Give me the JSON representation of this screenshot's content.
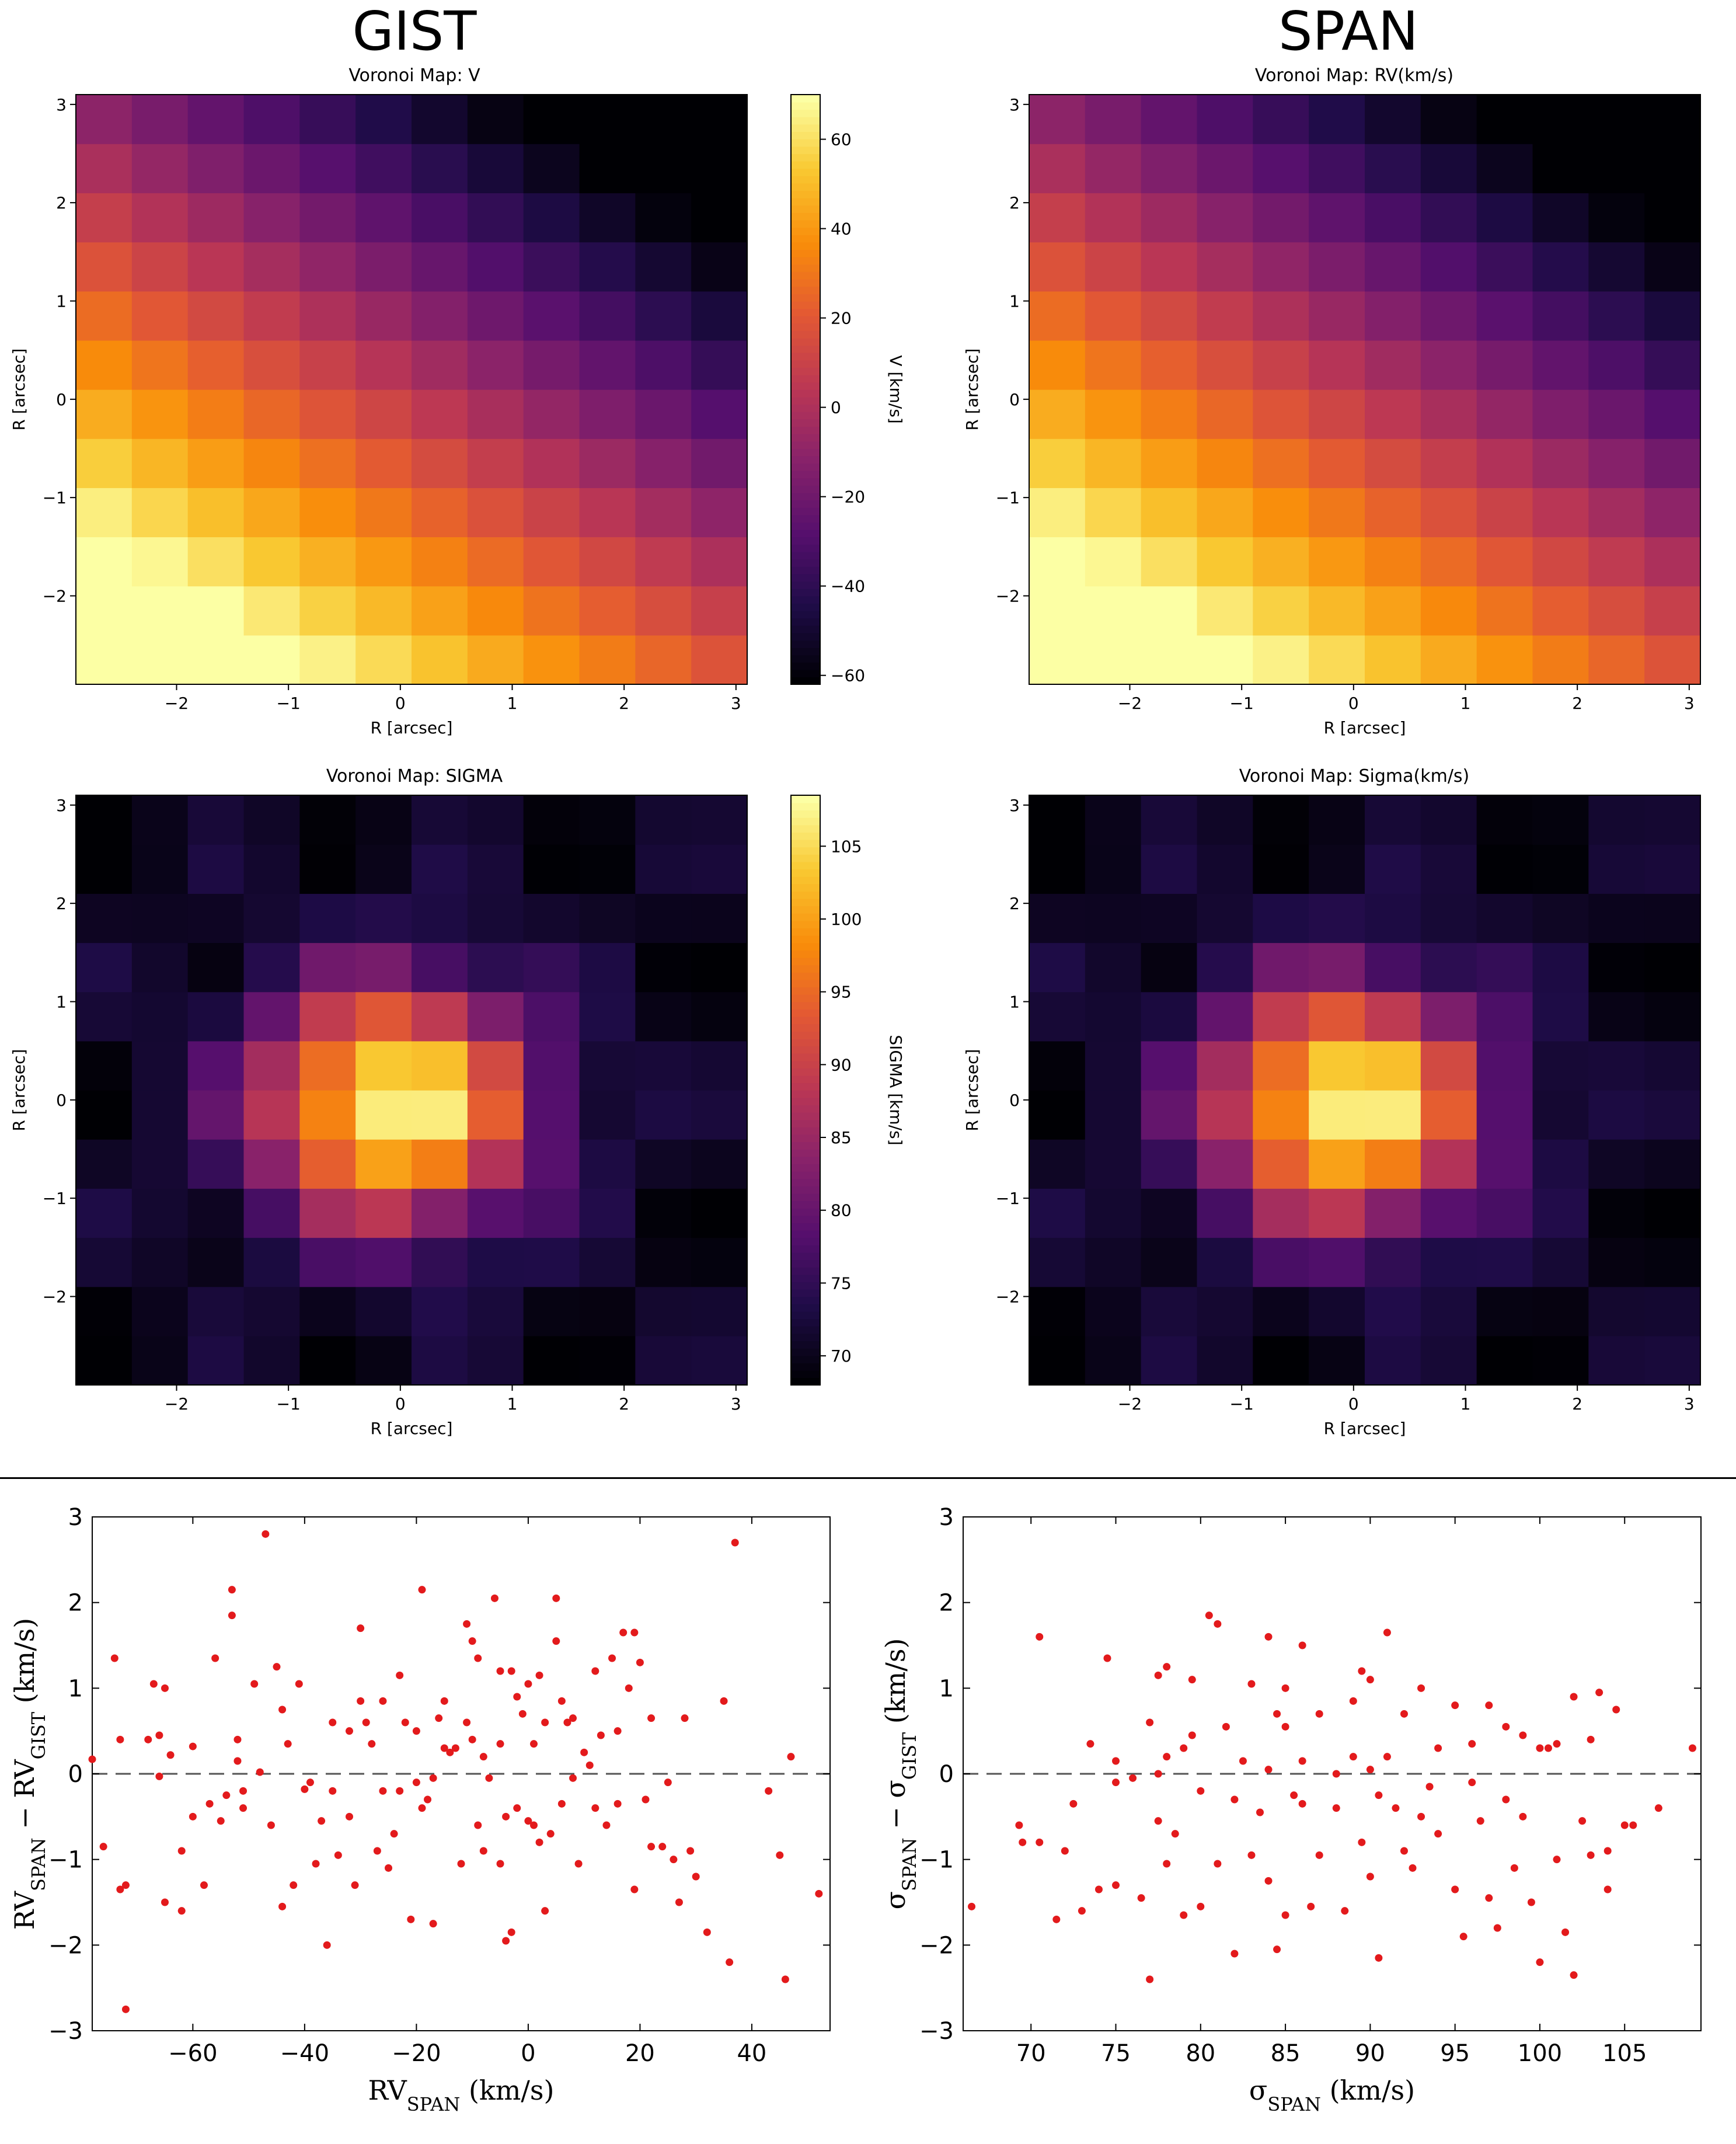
{
  "headers": {
    "left": "GIST",
    "right": "SPAN"
  },
  "chart_data": [
    {
      "type": "heatmap",
      "title": "Voronoi Map: V",
      "xlabel": "R [arcsec]",
      "ylabel": "R [arcsec]",
      "xlim": [
        -2.9,
        3.1
      ],
      "ylim": [
        -2.9,
        3.1
      ],
      "xticks": [
        -2,
        -1,
        0,
        1,
        2,
        3
      ],
      "yticks": [
        -2,
        -1,
        0,
        1,
        2,
        3
      ],
      "colorbar": {
        "label": "V [km/s]",
        "range": [
          -62,
          70
        ],
        "ticks": [
          -60,
          -40,
          -20,
          0,
          20,
          40,
          60
        ],
        "colormap": "inferno"
      },
      "field": "velocity",
      "value_range": [
        -58,
        68
      ]
    },
    {
      "type": "heatmap",
      "title": "Voronoi Map: RV(km/s)",
      "xlabel": "R [arcsec]",
      "ylabel": "R [arcsec]",
      "xlim": [
        -2.9,
        3.1
      ],
      "ylim": [
        -2.9,
        3.1
      ],
      "xticks": [
        -2,
        -1,
        0,
        1,
        2,
        3
      ],
      "yticks": [
        -2,
        -1,
        0,
        1,
        2,
        3
      ],
      "colormap": "inferno",
      "field": "velocity",
      "value_range": [
        -58,
        68
      ]
    },
    {
      "type": "heatmap",
      "title": "Voronoi Map: SIGMA",
      "xlabel": "R [arcsec]",
      "ylabel": "R [arcsec]",
      "xlim": [
        -2.9,
        3.1
      ],
      "ylim": [
        -2.9,
        3.1
      ],
      "xticks": [
        -2,
        -1,
        0,
        1,
        2,
        3
      ],
      "yticks": [
        -2,
        -1,
        0,
        1,
        2,
        3
      ],
      "colorbar": {
        "label": "SIGMA [km/s]",
        "range": [
          68,
          108.5
        ],
        "ticks": [
          70,
          75,
          80,
          85,
          90,
          95,
          100,
          105
        ],
        "colormap": "inferno"
      },
      "field": "sigma",
      "value_range": [
        68,
        108
      ]
    },
    {
      "type": "heatmap",
      "title": "Voronoi Map: Sigma(km/s)",
      "xlabel": "R [arcsec]",
      "ylabel": "R [arcsec]",
      "xlim": [
        -2.9,
        3.1
      ],
      "ylim": [
        -2.9,
        3.1
      ],
      "xticks": [
        -2,
        -1,
        0,
        1,
        2,
        3
      ],
      "yticks": [
        -2,
        -1,
        0,
        1,
        2,
        3
      ],
      "colormap": "inferno",
      "field": "sigma",
      "value_range": [
        68,
        108
      ]
    },
    {
      "type": "scatter",
      "xlabel": "RV_SPAN (km/s)",
      "ylabel": "RV_SPAN − RV_GIST (km/s)",
      "xlim": [
        -78,
        54
      ],
      "ylim": [
        -3,
        3
      ],
      "xticks": [
        -60,
        -40,
        -20,
        0,
        20,
        40
      ],
      "yticks": [
        -3,
        -2,
        -1,
        0,
        1,
        2,
        3
      ],
      "reference_line": 0,
      "color": "#e31a1c",
      "points": [
        [
          -78,
          0.17
        ],
        [
          -76,
          -0.85
        ],
        [
          -74,
          1.35
        ],
        [
          -73,
          0.4
        ],
        [
          -73,
          -1.35
        ],
        [
          -72,
          -2.75
        ],
        [
          -72,
          -1.3
        ],
        [
          -68,
          0.4
        ],
        [
          -67,
          1.05
        ],
        [
          -66,
          -0.03
        ],
        [
          -66,
          0.45
        ],
        [
          -65,
          1.0
        ],
        [
          -65,
          -1.5
        ],
        [
          -64,
          0.22
        ],
        [
          -62,
          -1.6
        ],
        [
          -62,
          -0.9
        ],
        [
          -60,
          0.32
        ],
        [
          -60,
          -0.5
        ],
        [
          -58,
          -1.3
        ],
        [
          -57,
          -0.35
        ],
        [
          -56,
          1.35
        ],
        [
          -55,
          -0.55
        ],
        [
          -54,
          -0.25
        ],
        [
          -53,
          2.15
        ],
        [
          -53,
          1.85
        ],
        [
          -52,
          0.4
        ],
        [
          -52,
          0.15
        ],
        [
          -51,
          -0.4
        ],
        [
          -51,
          -0.2
        ],
        [
          -49,
          1.05
        ],
        [
          -48,
          0.02
        ],
        [
          -47,
          2.8
        ],
        [
          -46,
          -0.6
        ],
        [
          -45,
          1.25
        ],
        [
          -44,
          -1.55
        ],
        [
          -44,
          0.75
        ],
        [
          -43,
          0.35
        ],
        [
          -42,
          -1.3
        ],
        [
          -41,
          1.05
        ],
        [
          -40,
          -0.18
        ],
        [
          -39,
          -0.1
        ],
        [
          -38,
          -1.05
        ],
        [
          -37,
          -0.55
        ],
        [
          -36,
          -2.0
        ],
        [
          -35,
          0.6
        ],
        [
          -35,
          -0.2
        ],
        [
          -34,
          -0.95
        ],
        [
          -32,
          -0.5
        ],
        [
          -32,
          0.5
        ],
        [
          -31,
          -1.3
        ],
        [
          -30,
          1.7
        ],
        [
          -30,
          0.85
        ],
        [
          -29,
          0.6
        ],
        [
          -28,
          0.35
        ],
        [
          -27,
          -0.9
        ],
        [
          -26,
          0.85
        ],
        [
          -26,
          -0.2
        ],
        [
          -25,
          -1.1
        ],
        [
          -24,
          -0.7
        ],
        [
          -23,
          1.15
        ],
        [
          -23,
          -0.2
        ],
        [
          -22,
          0.6
        ],
        [
          -21,
          -1.7
        ],
        [
          -20,
          0.5
        ],
        [
          -20,
          -0.1
        ],
        [
          -19,
          2.15
        ],
        [
          -19,
          -0.4
        ],
        [
          -18,
          -0.3
        ],
        [
          -17,
          -1.75
        ],
        [
          -17,
          -0.05
        ],
        [
          -16,
          0.65
        ],
        [
          -15,
          0.85
        ],
        [
          -15,
          0.3
        ],
        [
          -14,
          0.25
        ],
        [
          -13,
          0.3
        ],
        [
          -12,
          -1.05
        ],
        [
          -11,
          1.75
        ],
        [
          -11,
          0.6
        ],
        [
          -10,
          1.55
        ],
        [
          -10,
          0.4
        ],
        [
          -9,
          -0.6
        ],
        [
          -9,
          1.35
        ],
        [
          -8,
          -0.9
        ],
        [
          -8,
          0.2
        ],
        [
          -7,
          -0.05
        ],
        [
          -6,
          2.05
        ],
        [
          -5,
          -1.05
        ],
        [
          -5,
          1.2
        ],
        [
          -5,
          0.35
        ],
        [
          -4,
          -1.95
        ],
        [
          -4,
          -0.5
        ],
        [
          -3,
          1.2
        ],
        [
          -3,
          -1.85
        ],
        [
          -2,
          -0.4
        ],
        [
          -2,
          0.9
        ],
        [
          -1,
          0.7
        ],
        [
          0,
          1.05
        ],
        [
          0,
          -0.55
        ],
        [
          1,
          -0.6
        ],
        [
          1,
          0.35
        ],
        [
          2,
          1.15
        ],
        [
          2,
          -0.8
        ],
        [
          3,
          -1.6
        ],
        [
          3,
          0.6
        ],
        [
          4,
          -0.7
        ],
        [
          5,
          2.05
        ],
        [
          5,
          1.55
        ],
        [
          6,
          0.85
        ],
        [
          6,
          -0.35
        ],
        [
          7,
          0.6
        ],
        [
          8,
          0.65
        ],
        [
          8,
          -0.05
        ],
        [
          9,
          -1.05
        ],
        [
          10,
          0.25
        ],
        [
          11,
          0.1
        ],
        [
          12,
          1.2
        ],
        [
          12,
          -0.4
        ],
        [
          13,
          0.45
        ],
        [
          14,
          -0.6
        ],
        [
          15,
          1.35
        ],
        [
          16,
          0.5
        ],
        [
          16,
          -0.35
        ],
        [
          17,
          1.65
        ],
        [
          18,
          1.0
        ],
        [
          19,
          1.65
        ],
        [
          19,
          -1.35
        ],
        [
          20,
          1.3
        ],
        [
          21,
          -0.3
        ],
        [
          22,
          -0.85
        ],
        [
          22,
          0.65
        ],
        [
          24,
          -0.85
        ],
        [
          25,
          -0.1
        ],
        [
          26,
          -1.0
        ],
        [
          27,
          -1.5
        ],
        [
          28,
          0.65
        ],
        [
          29,
          -0.9
        ],
        [
          30,
          -1.2
        ],
        [
          32,
          -1.85
        ],
        [
          35,
          0.85
        ],
        [
          36,
          -2.2
        ],
        [
          37,
          2.7
        ],
        [
          43,
          -0.2
        ],
        [
          45,
          -0.95
        ],
        [
          46,
          -2.4
        ],
        [
          47,
          0.2
        ],
        [
          52,
          -1.4
        ]
      ]
    },
    {
      "type": "scatter",
      "xlabel": "σ_SPAN (km/s)",
      "ylabel": "σ_SPAN − σ_GIST (km/s)",
      "xlim": [
        66,
        109.5
      ],
      "ylim": [
        -3,
        3
      ],
      "xticks": [
        70,
        75,
        80,
        85,
        90,
        95,
        100,
        105
      ],
      "yticks": [
        -3,
        -2,
        -1,
        0,
        1,
        2,
        3
      ],
      "reference_line": 0,
      "color": "#e31a1c",
      "points": [
        [
          66.5,
          -1.55
        ],
        [
          69.3,
          -0.6
        ],
        [
          69.5,
          -0.8
        ],
        [
          70.5,
          1.6
        ],
        [
          70.5,
          -0.8
        ],
        [
          71.5,
          -1.7
        ],
        [
          72,
          -0.9
        ],
        [
          72.5,
          -0.35
        ],
        [
          73,
          -1.6
        ],
        [
          73.5,
          0.35
        ],
        [
          74,
          -1.35
        ],
        [
          74.5,
          1.35
        ],
        [
          75,
          -1.3
        ],
        [
          75,
          0.15
        ],
        [
          75,
          -0.1
        ],
        [
          76,
          -0.05
        ],
        [
          76.5,
          -1.45
        ],
        [
          77,
          0.6
        ],
        [
          77,
          -2.4
        ],
        [
          77.5,
          1.15
        ],
        [
          77.5,
          0.0
        ],
        [
          77.5,
          -0.55
        ],
        [
          78,
          0.2
        ],
        [
          78,
          1.25
        ],
        [
          78,
          -1.05
        ],
        [
          78.5,
          -0.7
        ],
        [
          79,
          0.3
        ],
        [
          79,
          -1.65
        ],
        [
          79.5,
          1.1
        ],
        [
          79.5,
          0.45
        ],
        [
          80,
          -1.55
        ],
        [
          80,
          -0.2
        ],
        [
          80.5,
          1.85
        ],
        [
          81,
          1.75
        ],
        [
          81,
          -1.05
        ],
        [
          81.5,
          0.55
        ],
        [
          82,
          -0.3
        ],
        [
          82,
          -2.1
        ],
        [
          82.5,
          0.15
        ],
        [
          83,
          -0.95
        ],
        [
          83,
          1.05
        ],
        [
          83.5,
          -0.45
        ],
        [
          84,
          1.6
        ],
        [
          84,
          0.05
        ],
        [
          84,
          -1.25
        ],
        [
          84.5,
          0.7
        ],
        [
          84.5,
          -2.05
        ],
        [
          85,
          1.0
        ],
        [
          85,
          0.55
        ],
        [
          85,
          -1.65
        ],
        [
          85.5,
          -0.25
        ],
        [
          86,
          -0.35
        ],
        [
          86,
          1.5
        ],
        [
          86,
          0.15
        ],
        [
          86.5,
          -1.55
        ],
        [
          87,
          0.7
        ],
        [
          87,
          -0.95
        ],
        [
          88,
          0.0
        ],
        [
          88,
          -0.4
        ],
        [
          88.5,
          -1.6
        ],
        [
          89,
          0.85
        ],
        [
          89,
          0.2
        ],
        [
          89.5,
          -0.8
        ],
        [
          89.5,
          1.2
        ],
        [
          90,
          1.1
        ],
        [
          90,
          0.05
        ],
        [
          90,
          -1.2
        ],
        [
          90.5,
          -0.25
        ],
        [
          90.5,
          -2.15
        ],
        [
          91,
          1.65
        ],
        [
          91,
          0.2
        ],
        [
          91.5,
          -0.4
        ],
        [
          92,
          -0.9
        ],
        [
          92,
          0.7
        ],
        [
          92.5,
          -1.1
        ],
        [
          93,
          -0.5
        ],
        [
          93,
          1.0
        ],
        [
          93.5,
          -0.15
        ],
        [
          94,
          0.3
        ],
        [
          94,
          -0.7
        ],
        [
          95,
          0.8
        ],
        [
          95,
          -1.35
        ],
        [
          95.5,
          -1.9
        ],
        [
          96,
          -0.1
        ],
        [
          96,
          0.35
        ],
        [
          96.5,
          -0.55
        ],
        [
          97,
          0.8
        ],
        [
          97,
          -1.45
        ],
        [
          97.5,
          -1.8
        ],
        [
          98,
          -0.3
        ],
        [
          98,
          0.55
        ],
        [
          98.5,
          -1.1
        ],
        [
          99,
          -0.5
        ],
        [
          99,
          0.45
        ],
        [
          99.5,
          -1.5
        ],
        [
          100,
          0.3
        ],
        [
          100,
          -2.2
        ],
        [
          100.5,
          0.3
        ],
        [
          101,
          0.35
        ],
        [
          101,
          -1.0
        ],
        [
          101.5,
          -1.85
        ],
        [
          102,
          0.9
        ],
        [
          102,
          -2.35
        ],
        [
          102.5,
          -0.55
        ],
        [
          103,
          -0.95
        ],
        [
          103,
          0.4
        ],
        [
          103.5,
          0.95
        ],
        [
          104,
          -0.9
        ],
        [
          104,
          -1.35
        ],
        [
          104.5,
          0.75
        ],
        [
          105,
          -0.6
        ],
        [
          105.5,
          -0.6
        ],
        [
          107,
          -0.4
        ],
        [
          109,
          0.3
        ]
      ]
    }
  ]
}
